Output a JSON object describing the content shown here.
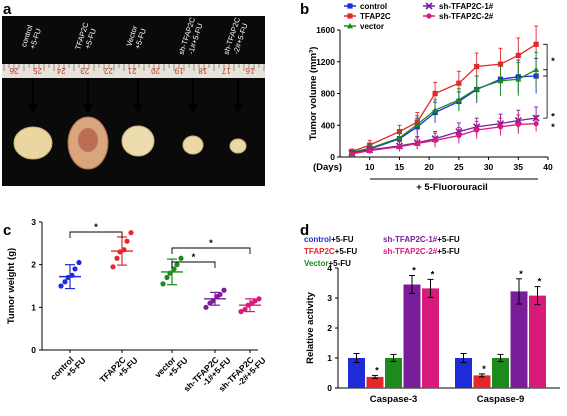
{
  "panels": {
    "a": "a",
    "b": "b",
    "c": "c",
    "d": "d"
  },
  "panel_a": {
    "photo_labels": [
      [
        "control",
        "+5-FU"
      ],
      [
        "TFAP2C",
        "+5-FU"
      ],
      [
        "Vector",
        "+5-FU"
      ],
      [
        "sh-TFAP2C",
        "-1#+5-FU"
      ],
      [
        "sh-TFAP2C",
        "-2#+5-FU"
      ]
    ],
    "ruler_numbers": [
      "26",
      "25",
      "24",
      "23",
      "22",
      "21",
      "20",
      "19",
      "18",
      "17",
      "16"
    ]
  },
  "chart_data": [
    {
      "panel": "b",
      "type": "line",
      "ylabel": "Tumor volume (mm³)",
      "xlabel": "(Days)",
      "subtitle": "+ 5-Fluorouracil",
      "x": [
        7,
        10,
        15,
        18,
        21,
        25,
        28,
        32,
        35,
        38
      ],
      "xticks": [
        10,
        15,
        20,
        25,
        30,
        35,
        40
      ],
      "xlim": [
        5,
        40
      ],
      "ylim": [
        0,
        1600
      ],
      "yticks": [
        0,
        400,
        800,
        1200,
        1600
      ],
      "legend_position": "top",
      "series": [
        {
          "name": "control",
          "color": "#1f2bd8",
          "marker": "square",
          "values": [
            60,
            100,
            230,
            380,
            560,
            700,
            850,
            980,
            1010,
            1020
          ],
          "errors": [
            30,
            50,
            70,
            110,
            130,
            120,
            170,
            200,
            210,
            220
          ]
        },
        {
          "name": "TFAP2C",
          "color": "#e5272b",
          "marker": "square",
          "values": [
            70,
            150,
            320,
            440,
            800,
            930,
            1140,
            1170,
            1280,
            1420
          ],
          "errors": [
            30,
            60,
            80,
            120,
            140,
            150,
            170,
            200,
            220,
            230
          ]
        },
        {
          "name": "vector",
          "color": "#1d8a1d",
          "marker": "triangle",
          "values": [
            60,
            110,
            240,
            410,
            590,
            720,
            860,
            960,
            980,
            1100
          ],
          "errors": [
            30,
            50,
            70,
            110,
            130,
            140,
            160,
            190,
            210,
            220
          ]
        },
        {
          "name": "sh-TFAP2C-1#",
          "color": "#7a1d9a",
          "marker": "cross",
          "values": [
            50,
            90,
            140,
            180,
            230,
            320,
            380,
            420,
            460,
            490
          ],
          "errors": [
            20,
            40,
            60,
            80,
            90,
            110,
            110,
            120,
            130,
            140
          ]
        },
        {
          "name": "sh-TFAP2C-2#",
          "color": "#d81b7a",
          "marker": "circle",
          "values": [
            40,
            80,
            130,
            170,
            210,
            270,
            340,
            380,
            410,
            420
          ],
          "errors": [
            20,
            40,
            60,
            70,
            90,
            100,
            110,
            110,
            120,
            100
          ]
        }
      ],
      "significance": [
        "*",
        "*",
        "*"
      ]
    },
    {
      "panel": "c",
      "type": "scatter",
      "ylabel": "Tumor weight (g)",
      "ylim": [
        0,
        3
      ],
      "yticks": [
        0,
        1,
        2,
        3
      ],
      "categories": [
        {
          "line1": "control",
          "line2": "+5-FU"
        },
        {
          "line1": "TFAP2C",
          "line2": "+5-FU"
        },
        {
          "line1": "vector",
          "line2": "+5-FU"
        },
        {
          "line1": "sh-TFAP2C",
          "line2": "-1#+5-FU"
        },
        {
          "line1": "sh-TFAP2C",
          "line2": "-2#+5-FU"
        }
      ],
      "series": [
        {
          "color": "#1f2bd8",
          "marker": "circle",
          "mean": 1.72,
          "sd": 0.28,
          "points": [
            1.5,
            1.6,
            1.7,
            1.75,
            1.9,
            2.05
          ]
        },
        {
          "color": "#e5272b",
          "marker": "circle",
          "mean": 2.32,
          "sd": 0.33,
          "points": [
            1.95,
            2.15,
            2.3,
            2.35,
            2.55,
            2.75
          ]
        },
        {
          "color": "#1d8a1d",
          "marker": "circle",
          "mean": 1.83,
          "sd": 0.3,
          "points": [
            1.55,
            1.7,
            1.8,
            1.9,
            2.0,
            2.15
          ]
        },
        {
          "color": "#7a1d9a",
          "marker": "circle",
          "mean": 1.2,
          "sd": 0.15,
          "points": [
            1.0,
            1.1,
            1.15,
            1.25,
            1.3,
            1.4
          ]
        },
        {
          "color": "#d81b7a",
          "marker": "circle",
          "mean": 1.05,
          "sd": 0.15,
          "points": [
            0.9,
            0.95,
            1.05,
            1.1,
            1.15,
            1.2
          ]
        }
      ],
      "brackets": [
        {
          "from": 0,
          "to": 1,
          "label": "*"
        },
        {
          "from": 2,
          "to": 3,
          "label": "*"
        },
        {
          "from": 2,
          "to": 4,
          "label": "*"
        }
      ]
    },
    {
      "panel": "d",
      "type": "bar",
      "ylabel": "Relative activity",
      "ylim": [
        0,
        4
      ],
      "yticks": [
        0,
        1,
        2,
        3,
        4
      ],
      "categories": [
        "Caspase-3",
        "Caspase-9"
      ],
      "legend_position": "top",
      "series": [
        {
          "name": "control",
          "suffix": "+5-FU",
          "color": "#1f2bd8",
          "values": [
            1.0,
            1.0
          ],
          "errors": [
            0.15,
            0.15
          ],
          "sig": [
            "",
            ""
          ]
        },
        {
          "name": "TFAP2C",
          "suffix": "+5-FU",
          "color": "#e5272b",
          "values": [
            0.37,
            0.42
          ],
          "errors": [
            0.05,
            0.05
          ],
          "sig": [
            "*",
            "*"
          ]
        },
        {
          "name": "Vector",
          "suffix": "+5-FU",
          "color": "#1d8a1d",
          "values": [
            1.0,
            1.0
          ],
          "errors": [
            0.12,
            0.12
          ],
          "sig": [
            "",
            ""
          ]
        },
        {
          "name": "sh-TFAP2C-1#",
          "suffix": "+5-FU",
          "color": "#7a1d9a",
          "values": [
            3.45,
            3.22
          ],
          "errors": [
            0.3,
            0.42
          ],
          "sig": [
            "*",
            "*"
          ]
        },
        {
          "name": "sh-TFAP2C-2#",
          "suffix": "+5-FU",
          "color": "#d81b7a",
          "values": [
            3.32,
            3.08
          ],
          "errors": [
            0.3,
            0.3
          ],
          "sig": [
            "*",
            "*"
          ]
        }
      ]
    }
  ]
}
